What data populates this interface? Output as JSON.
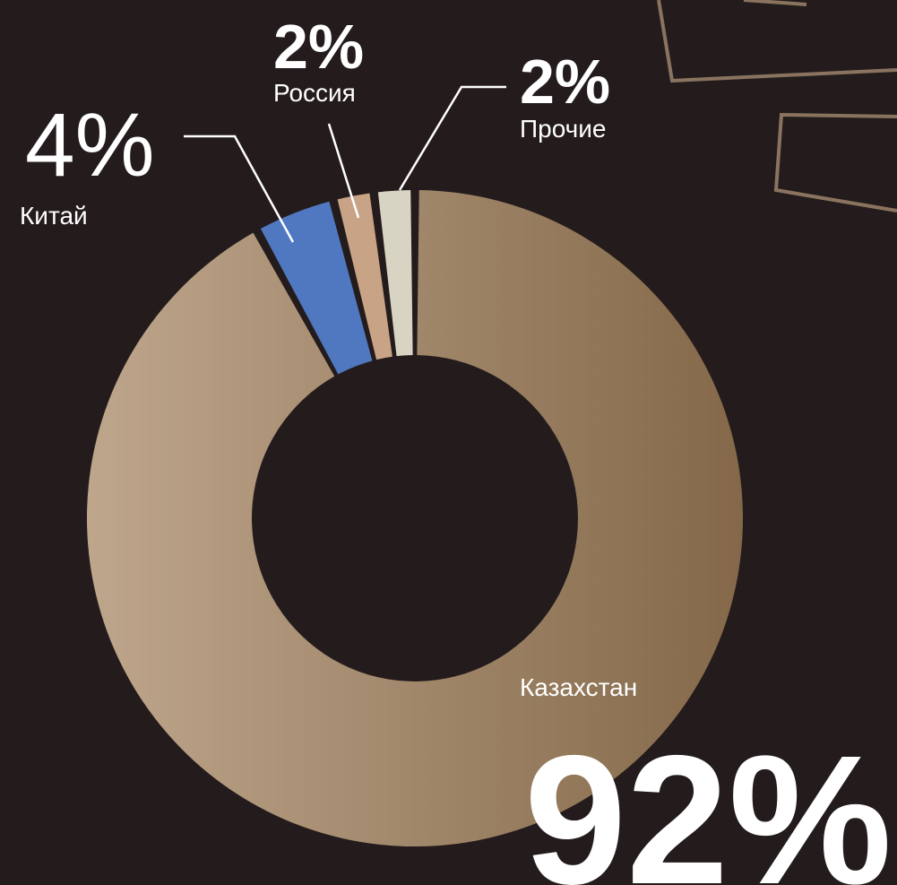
{
  "chart_data": {
    "type": "donut",
    "categories": [
      "Казахстан",
      "Китай",
      "Россия",
      "Прочие"
    ],
    "values": [
      92,
      4,
      2,
      2
    ],
    "value_labels": [
      "92%",
      "4%",
      "2%",
      "2%"
    ],
    "colors": [
      "#a58a6c",
      "#4f78c0",
      "#c9a386",
      "#d8d4c4"
    ]
  }
}
